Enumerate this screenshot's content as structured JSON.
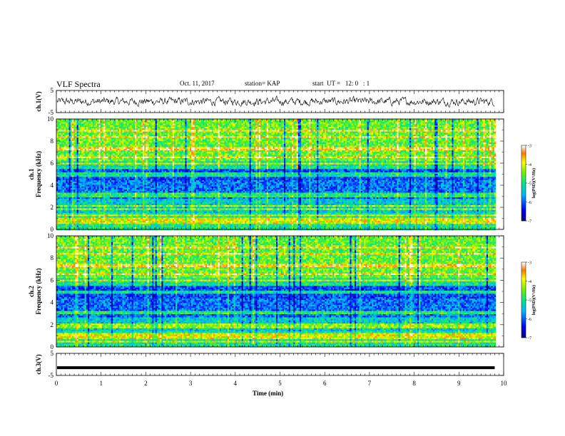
{
  "header": {
    "title": "VLF Spectra",
    "date": "Oct. 11, 2017",
    "station": "station= KAP",
    "start": "start  UT =   12: 0   : 1"
  },
  "chart_data": [
    {
      "id": "ch1_waveform",
      "type": "line",
      "ylabel": "ch.1(V)",
      "ylim": [
        -5,
        5
      ],
      "yticks": [
        "5",
        "-5"
      ],
      "xlim": [
        0,
        10
      ],
      "trace_end": 9.8,
      "amplitude": 1.1,
      "color": "#000000"
    },
    {
      "id": "ch1_spectrogram",
      "type": "heatmap",
      "ylabel": "ch.1\nFrequency  (kHz)",
      "ylim": [
        0,
        10
      ],
      "yticks": [
        "0",
        "2",
        "4",
        "6",
        "8",
        "10"
      ],
      "xlim": [
        0,
        10
      ],
      "data_end": 9.8,
      "colorbar": {
        "label": "log(PSD)(V²/Hz)",
        "range": [
          -7,
          -3
        ],
        "ticks": [
          "-3",
          "-4",
          "-5",
          "-6",
          "-7"
        ]
      }
    },
    {
      "id": "ch2_spectrogram",
      "type": "heatmap",
      "ylabel": "ch.2\nFrequency  (kHz)",
      "ylim": [
        0,
        10
      ],
      "yticks": [
        "0",
        "2",
        "4",
        "6",
        "8",
        "10"
      ],
      "xlim": [
        0,
        10
      ],
      "data_end": 9.8,
      "colorbar": {
        "label": "log(PSD)(V²/Hz)",
        "range": [
          -7,
          -3
        ],
        "ticks": [
          "-3",
          "-4",
          "-5",
          "-6",
          "-7"
        ]
      }
    },
    {
      "id": "ch3_waveform",
      "type": "line",
      "ylabel": "ch.3(V)",
      "ylim": [
        -5,
        5
      ],
      "yticks": [
        "5",
        "-5"
      ],
      "xlim": [
        0,
        10
      ],
      "trace_end": 9.8,
      "level": -1.5,
      "color": "#000000"
    }
  ],
  "time_axis": {
    "label": "Time  (min)",
    "ticks": [
      "0",
      "1",
      "2",
      "3",
      "4",
      "5",
      "6",
      "7",
      "8",
      "9",
      "10"
    ]
  }
}
